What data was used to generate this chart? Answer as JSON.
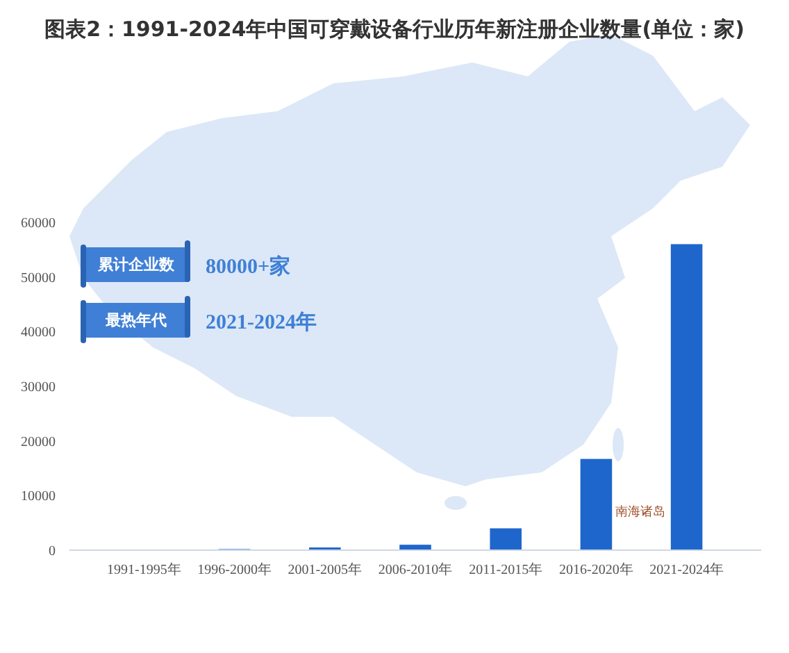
{
  "chart_data": {
    "type": "bar",
    "title": "图表2：1991-2024年中国可穿戴设备行业历年新注册企业数量(单位：家)",
    "categories": [
      "1991-1995年",
      "1996-2000年",
      "2001-2005年",
      "2006-2010年",
      "2011-2015年",
      "2016-2020年",
      "2021-2024年"
    ],
    "values": [
      0,
      200,
      500,
      1000,
      4000,
      16700,
      56000
    ],
    "color": "#1f66cc",
    "ylim": [
      0,
      60000
    ],
    "yticks": [
      0,
      10000,
      20000,
      30000,
      40000,
      50000,
      60000
    ],
    "grid": false,
    "annotations": [
      "累计企业数",
      "80000+家",
      "最热年代",
      "2021-2024年",
      "南海诸岛"
    ]
  }
}
